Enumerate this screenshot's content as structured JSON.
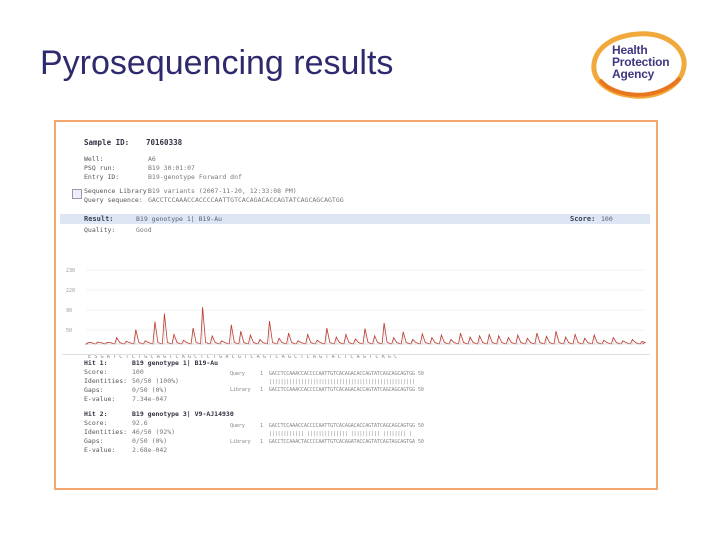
{
  "slide": {
    "title": "Pyrosequencing results",
    "logo": {
      "line1": "Health",
      "line2": "Protection",
      "line3": "Agency"
    }
  },
  "colors": {
    "title": "#2e2a6e",
    "frame": "#f3a76e",
    "accent": "#e8761e",
    "trace": "#c0392b"
  },
  "report": {
    "sample_id_label": "Sample ID:",
    "sample_id": "70160338",
    "fields": [
      {
        "label": "Well:",
        "value": "A6"
      },
      {
        "label": "PSQ run:",
        "value": "B19 30:01:07"
      },
      {
        "label": "Entry ID:",
        "value": "B19-genotype Forward dnf"
      }
    ],
    "fields2": [
      {
        "label": "Sequence Library:",
        "value": "B19 variants (2007-11-20, 12:33:08 PM)"
      },
      {
        "label": "Query sequence:",
        "value": "GACCTCCAAACCACCCCAATTGTCACAGACACCAGTATCAGCAGCAGTGG"
      }
    ],
    "result_label": "Result:",
    "result_value": "B19 genotype 1| B19-Au",
    "score_label": "Score:",
    "score_value": "100",
    "quality_label": "Quality:",
    "quality_value": "Good",
    "y_ticks": [
      "230",
      "220",
      "90",
      "50"
    ],
    "hits": [
      {
        "title_label": "Hit 1:",
        "title_value": "B19 genotype 1| B19-Au",
        "rows": [
          {
            "label": "Score:",
            "value": "100"
          },
          {
            "label": "Identities:",
            "value": "50/50 (100%)"
          },
          {
            "label": "Gaps:",
            "value": "0/50 (0%)"
          },
          {
            "label": "E-value:",
            "value": "7.34e-047"
          }
        ],
        "query_label": "Query",
        "query_seq": "1  GACCTCCAAACCACCCCAATTGTCACAGACACCAGTATCAGCAGCAGTGG 50",
        "match": "   ||||||||||||||||||||||||||||||||||||||||||||||||||",
        "library_label": "Library",
        "library_seq": "1  GACCTCCAAACCACCCCAATTGTCACAGACACCAGTATCAGCAGCAGTGG 50"
      },
      {
        "title_label": "Hit 2:",
        "title_value": "B19 genotype 3| V9-AJ14930",
        "rows": [
          {
            "label": "Score:",
            "value": "92.6"
          },
          {
            "label": "Identities:",
            "value": "46/50 (92%)"
          },
          {
            "label": "Gaps:",
            "value": "0/50 (0%)"
          },
          {
            "label": "E-value:",
            "value": "2.68e-042"
          }
        ],
        "query_label": "Query",
        "query_seq": "1  GACCTCCAAACCACCCCAATTGTCACAGACACCAGTATCAGCAGCAGTGG 50",
        "match": "   |||||||||||| |||||||||||||| |||||||||| |||||||| |",
        "library_label": "Library",
        "library_seq": "1  GACCTCCAAACTACCCCAATTGTCACAGATACCAGTATCAGTAGCAGTGA 50"
      }
    ],
    "dispensation": "E S G A T C T C T G C A G T C A G C T C T G A C G T C A G T C A G C T C A G T A C T C A G T C A G C"
  },
  "chart_data": {
    "type": "line",
    "title": "",
    "xlabel": "",
    "ylabel": "",
    "ylim": [
      0,
      250
    ],
    "series": [
      {
        "values": [
          4,
          6,
          5,
          20,
          8,
          45,
          10,
          70,
          95,
          30,
          12,
          50,
          115,
          25,
          10,
          60,
          40,
          28,
          14,
          72,
          18,
          34,
          10,
          30,
          12,
          50,
          22,
          30,
          16,
          48,
          26,
          66,
          20,
          38,
          14,
          32,
          20,
          28,
          14,
          34,
          22,
          26,
          30,
          26,
          20,
          28,
          18,
          34,
          24,
          40,
          22,
          30,
          18,
          28,
          12,
          20,
          10,
          14,
          8
        ]
      }
    ]
  }
}
